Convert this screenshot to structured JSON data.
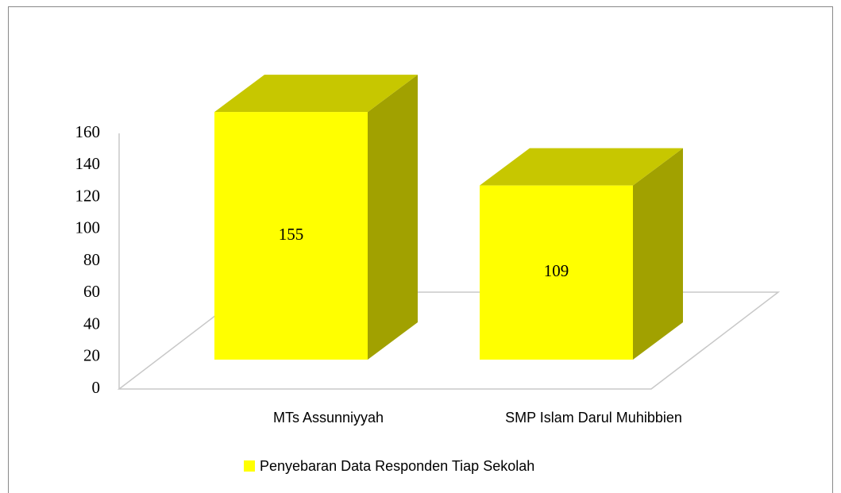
{
  "chart_data": {
    "type": "bar3d",
    "categories": [
      "MTs Assunniyyah",
      "SMP Islam Darul Muhibbien"
    ],
    "series": [
      {
        "name": "Penyebaran Data Responden Tiap Sekolah",
        "color": "#ffff00",
        "values": [
          155,
          109
        ]
      }
    ],
    "ylim": [
      0,
      160
    ],
    "yticks": [
      0,
      20,
      40,
      60,
      80,
      100,
      120,
      140,
      160
    ],
    "legend": "bottom"
  }
}
